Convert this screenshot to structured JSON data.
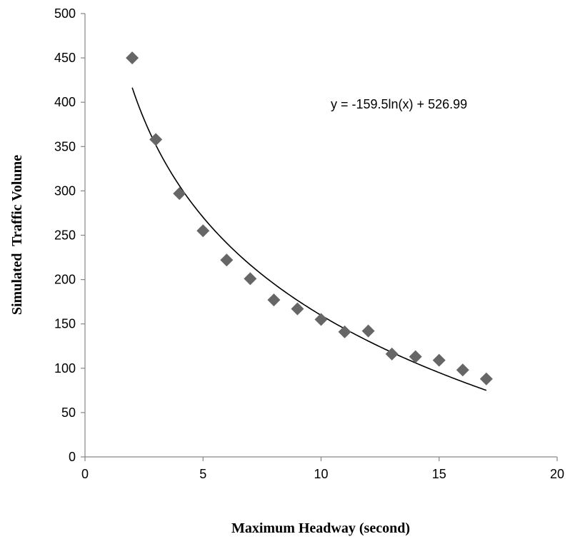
{
  "chart_data": {
    "type": "scatter",
    "title": "",
    "xlabel": "Maximum Headway (second)",
    "ylabel": "Simulated  Traffic Volume",
    "xlim": [
      0,
      20
    ],
    "ylim": [
      0,
      500
    ],
    "x_ticks": [
      0,
      5,
      10,
      15,
      20
    ],
    "y_ticks": [
      0,
      50,
      100,
      150,
      200,
      250,
      300,
      350,
      400,
      450,
      500
    ],
    "grid": false,
    "legend": "none",
    "marker": "diamond",
    "marker_color": "#666666",
    "trendline_color": "#000000",
    "series": [
      {
        "x": [
          2,
          3,
          4,
          5,
          6,
          7,
          8,
          9,
          10,
          11,
          12,
          13,
          14,
          15,
          16,
          17
        ],
        "y": [
          450,
          358,
          297,
          255,
          222,
          201,
          177,
          167,
          155,
          141,
          142,
          116,
          113,
          109,
          98,
          88
        ]
      }
    ],
    "trendline": {
      "type": "logarithmic",
      "a": -159.5,
      "b": 526.99,
      "x_range": [
        2,
        17
      ],
      "label": "y = -159.5ln(x) + 526.99"
    }
  }
}
